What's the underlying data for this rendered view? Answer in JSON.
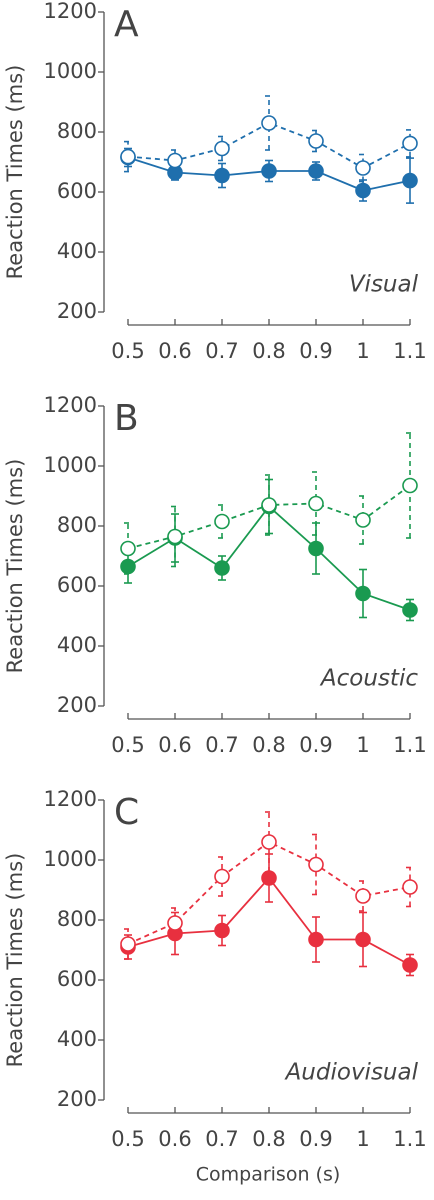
{
  "chart_data": [
    {
      "type": "line",
      "panel": "A",
      "annotation": "Visual",
      "ylabel": "Reaction Times (ms)",
      "categories": [
        "0.5",
        "0.6",
        "0.7",
        "0.8",
        "0.9",
        "1",
        "1.1"
      ],
      "ylim": [
        200,
        1200
      ],
      "yticks": [
        200,
        400,
        600,
        800,
        1000,
        1200
      ],
      "series": [
        {
          "color": "#1f6fad",
          "style": "solid",
          "marker": "filled",
          "values": [
            715,
            665,
            655,
            670,
            670,
            605,
            638
          ],
          "errors": [
            30,
            25,
            40,
            35,
            30,
            35,
            75
          ]
        },
        {
          "color": "#1f6fad",
          "style": "dashed",
          "marker": "open",
          "values": [
            718,
            705,
            745,
            830,
            770,
            680,
            762
          ],
          "errors": [
            50,
            35,
            40,
            90,
            35,
            45,
            45
          ]
        }
      ]
    },
    {
      "type": "line",
      "panel": "B",
      "annotation": "Acoustic",
      "ylabel": "Reaction Times (ms)",
      "categories": [
        "0.5",
        "0.6",
        "0.7",
        "0.8",
        "0.9",
        "1",
        "1.1"
      ],
      "ylim": [
        200,
        1200
      ],
      "yticks": [
        200,
        400,
        600,
        800,
        1000,
        1200
      ],
      "series": [
        {
          "color": "#1a9a50",
          "style": "solid",
          "marker": "filled",
          "values": [
            665,
            760,
            660,
            865,
            725,
            575,
            520
          ],
          "errors": [
            55,
            80,
            40,
            90,
            85,
            80,
            35
          ]
        },
        {
          "color": "#1a9a50",
          "style": "dashed",
          "marker": "open",
          "values": [
            725,
            765,
            815,
            870,
            875,
            820,
            935
          ],
          "errors": [
            85,
            100,
            55,
            100,
            105,
            80,
            175
          ]
        }
      ]
    },
    {
      "type": "line",
      "panel": "C",
      "annotation": "Audiovisual",
      "ylabel": "Reaction Times (ms)",
      "xlabel": "Comparison (s)",
      "categories": [
        "0.5",
        "0.6",
        "0.7",
        "0.8",
        "0.9",
        "1",
        "1.1"
      ],
      "ylim": [
        200,
        1200
      ],
      "yticks": [
        200,
        400,
        600,
        800,
        1000,
        1200
      ],
      "series": [
        {
          "color": "#e8303f",
          "style": "solid",
          "marker": "filled",
          "values": [
            710,
            755,
            765,
            940,
            735,
            735,
            650
          ],
          "errors": [
            40,
            70,
            50,
            80,
            75,
            90,
            35
          ]
        },
        {
          "color": "#e8303f",
          "style": "dashed",
          "marker": "open",
          "values": [
            720,
            790,
            945,
            1060,
            985,
            880,
            910
          ],
          "errors": [
            50,
            50,
            65,
            100,
            100,
            50,
            65
          ]
        }
      ]
    }
  ]
}
